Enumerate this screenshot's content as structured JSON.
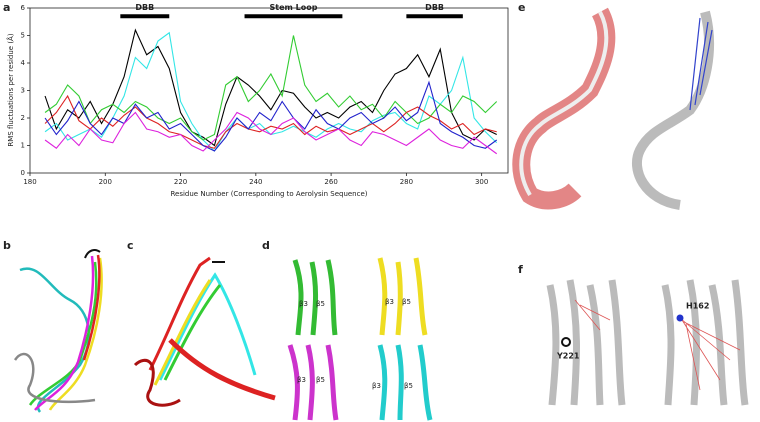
{
  "chart_data": {
    "type": "line",
    "xlabel": "Residue Number (Corresponding to Aerolysin Sequence)",
    "ylabel": "RMS fluctuations per residue (Å)",
    "x": [
      184,
      187,
      190,
      193,
      196,
      199,
      202,
      205,
      208,
      211,
      214,
      217,
      220,
      223,
      226,
      229,
      232,
      235,
      238,
      241,
      244,
      247,
      250,
      253,
      256,
      259,
      262,
      265,
      268,
      271,
      274,
      277,
      280,
      283,
      286,
      289,
      292,
      295,
      298,
      301,
      304
    ],
    "series": [
      {
        "color": "#000000",
        "values": [
          2.8,
          1.6,
          2.3,
          2.0,
          2.6,
          1.8,
          2.5,
          3.5,
          5.2,
          4.3,
          4.6,
          3.8,
          2.2,
          1.5,
          1.3,
          1.0,
          2.5,
          3.5,
          3.2,
          2.8,
          2.3,
          3.0,
          2.9,
          2.4,
          2.0,
          2.2,
          2.0,
          2.4,
          2.6,
          2.2,
          3.0,
          3.6,
          3.8,
          4.3,
          3.5,
          4.5,
          2.2,
          1.4,
          1.2,
          1.6,
          1.4
        ]
      },
      {
        "color": "#33e6e6",
        "values": [
          1.5,
          1.8,
          1.2,
          1.4,
          1.6,
          1.3,
          2.0,
          2.8,
          4.2,
          3.8,
          4.8,
          5.1,
          2.6,
          1.8,
          1.2,
          0.8,
          1.5,
          2.0,
          1.6,
          1.8,
          1.4,
          1.5,
          1.7,
          1.5,
          1.3,
          1.6,
          1.8,
          1.6,
          1.5,
          1.9,
          2.1,
          2.2,
          1.8,
          1.6,
          2.8,
          2.5,
          3.0,
          4.2,
          2.0,
          1.5,
          1.1
        ]
      },
      {
        "color": "#33cc33",
        "values": [
          2.2,
          2.5,
          3.2,
          2.8,
          1.8,
          2.3,
          2.5,
          2.2,
          2.6,
          2.4,
          2.0,
          1.8,
          2.0,
          1.5,
          1.2,
          1.4,
          3.2,
          3.5,
          2.6,
          3.0,
          3.6,
          2.8,
          5.0,
          3.2,
          2.6,
          2.9,
          2.4,
          2.8,
          2.3,
          2.5,
          2.0,
          2.6,
          2.2,
          1.8,
          2.0,
          2.5,
          2.2,
          2.8,
          2.6,
          2.2,
          2.6
        ]
      },
      {
        "color": "#dd2222",
        "values": [
          1.8,
          2.2,
          2.8,
          1.9,
          1.6,
          2.0,
          1.7,
          2.1,
          2.4,
          2.0,
          1.8,
          1.5,
          1.4,
          1.2,
          1.0,
          0.9,
          1.5,
          1.8,
          1.6,
          1.5,
          1.7,
          1.6,
          1.8,
          1.4,
          1.7,
          1.5,
          1.6,
          1.4,
          1.6,
          1.8,
          1.5,
          1.8,
          2.2,
          2.4,
          2.1,
          1.9,
          1.6,
          1.8,
          1.4,
          1.6,
          1.5
        ]
      },
      {
        "color": "#2222cc",
        "values": [
          2.0,
          1.4,
          1.9,
          2.6,
          1.8,
          1.4,
          2.0,
          1.8,
          2.5,
          2.0,
          2.2,
          1.6,
          1.8,
          1.4,
          1.0,
          0.8,
          1.3,
          2.0,
          1.6,
          2.2,
          1.9,
          2.6,
          2.0,
          1.6,
          2.3,
          1.8,
          1.6,
          2.0,
          2.2,
          1.8,
          2.0,
          2.4,
          1.9,
          2.2,
          3.3,
          1.8,
          1.5,
          1.3,
          1.0,
          0.9,
          1.2
        ]
      },
      {
        "color": "#dd22dd",
        "values": [
          1.2,
          0.9,
          1.4,
          1.0,
          1.6,
          1.2,
          1.1,
          1.8,
          2.2,
          1.6,
          1.5,
          1.3,
          1.4,
          1.0,
          0.8,
          1.2,
          1.6,
          2.2,
          2.0,
          1.6,
          1.4,
          1.8,
          2.0,
          1.5,
          1.2,
          1.4,
          1.6,
          1.2,
          1.0,
          1.5,
          1.4,
          1.2,
          1.0,
          1.3,
          1.6,
          1.2,
          1.0,
          0.9,
          1.3,
          1.0,
          0.7
        ]
      }
    ],
    "annotations": [
      {
        "label": "DBB",
        "start": 204,
        "end": 217,
        "y": 5.7
      },
      {
        "label": "Stem Loop",
        "start": 237,
        "end": 263,
        "y": 5.7
      },
      {
        "label": "DBB",
        "start": 280,
        "end": 295,
        "y": 5.7
      }
    ],
    "xlim": [
      180,
      307
    ],
    "xticks": [
      180,
      200,
      220,
      240,
      260,
      280,
      300
    ],
    "ylim": [
      0,
      6
    ],
    "yticks": [
      0,
      1,
      2,
      3,
      4,
      5,
      6
    ]
  },
  "panels": {
    "letters": [
      "a",
      "b",
      "c",
      "d",
      "e",
      "f"
    ],
    "d_labels": [
      "β3",
      "β5",
      "β3",
      "β5",
      "β3",
      "β5",
      "β3",
      "β5"
    ],
    "f_labels": [
      "Y221",
      "H162"
    ]
  }
}
